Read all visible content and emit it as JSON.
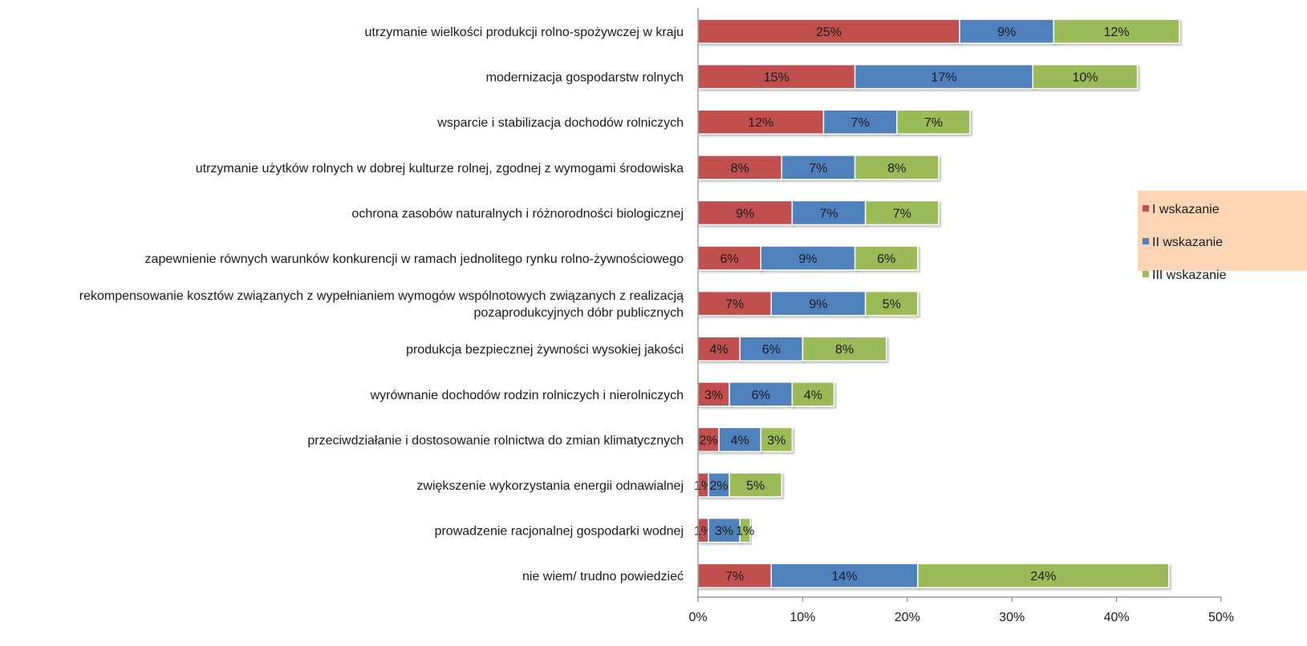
{
  "chart_data": {
    "type": "bar",
    "orientation": "horizontal",
    "stacked": true,
    "categories": [
      [
        "utrzymanie wielkości produkcji rolno-spożywczej w kraju"
      ],
      [
        "modernizacja gospodarstw rolnych"
      ],
      [
        "wsparcie i stabilizacja dochodów rolniczych"
      ],
      [
        "utrzymanie użytków rolnych w dobrej kulturze rolnej, zgodnej z wymogami środowiska"
      ],
      [
        "ochrona zasobów naturalnych i różnorodności biologicznej"
      ],
      [
        "zapewnienie równych warunków konkurencji w ramach jednolitego rynku rolno-żywnościowego"
      ],
      [
        "rekompensowanie kosztów związanych z wypełnianiem wymogów wspólnotowych związanych z realizacją",
        "pozaprodukcyjnych dóbr publicznych"
      ],
      [
        "produkcja bezpiecznej żywności wysokiej jakości"
      ],
      [
        "wyrównanie dochodów rodzin rolniczych i nierolniczych"
      ],
      [
        "przeciwdziałanie i dostosowanie rolnictwa do zmian klimatycznych"
      ],
      [
        "zwiększenie wykorzystania energii odnawialnej"
      ],
      [
        "prowadzenie racjonalnej gospodarki wodnej"
      ],
      [
        "nie wiem/ trudno powiedzieć"
      ]
    ],
    "series": [
      {
        "name": "I wskazanie",
        "color": "#c0504d",
        "values": [
          25,
          15,
          12,
          8,
          9,
          6,
          7,
          4,
          3,
          2,
          1,
          1,
          7
        ],
        "labels": [
          "25%",
          "15%",
          "12%",
          "8%",
          "9%",
          "6%",
          "7%",
          "4%",
          "3%",
          "2%",
          "1%",
          "1%",
          "7%"
        ]
      },
      {
        "name": "II wskazanie",
        "color": "#4f81bd",
        "values": [
          9,
          17,
          7,
          7,
          7,
          9,
          9,
          6,
          6,
          4,
          2,
          3,
          14
        ],
        "labels": [
          "9%",
          "17%",
          "7%",
          "7%",
          "7%",
          "9%",
          "9%",
          "6%",
          "6%",
          "4%",
          "2%",
          "3%",
          "14%"
        ]
      },
      {
        "name": "III wskazanie",
        "color": "#9bbb59",
        "values": [
          12,
          10,
          7,
          8,
          7,
          6,
          5,
          8,
          4,
          3,
          5,
          1,
          24
        ],
        "labels": [
          "12%",
          "10%",
          "7%",
          "8%",
          "7%",
          "6%",
          "5%",
          "8%",
          "4%",
          "3%",
          "5%",
          "1%",
          "24%"
        ]
      }
    ],
    "xlim": [
      0,
      50
    ],
    "xticks": [
      0,
      10,
      20,
      30,
      40,
      50
    ],
    "xtick_labels": [
      "0%",
      "10%",
      "20%",
      "30%",
      "40%",
      "50%"
    ],
    "grid": false,
    "legend": {
      "position": "right",
      "background": "#fcd5b5"
    }
  }
}
